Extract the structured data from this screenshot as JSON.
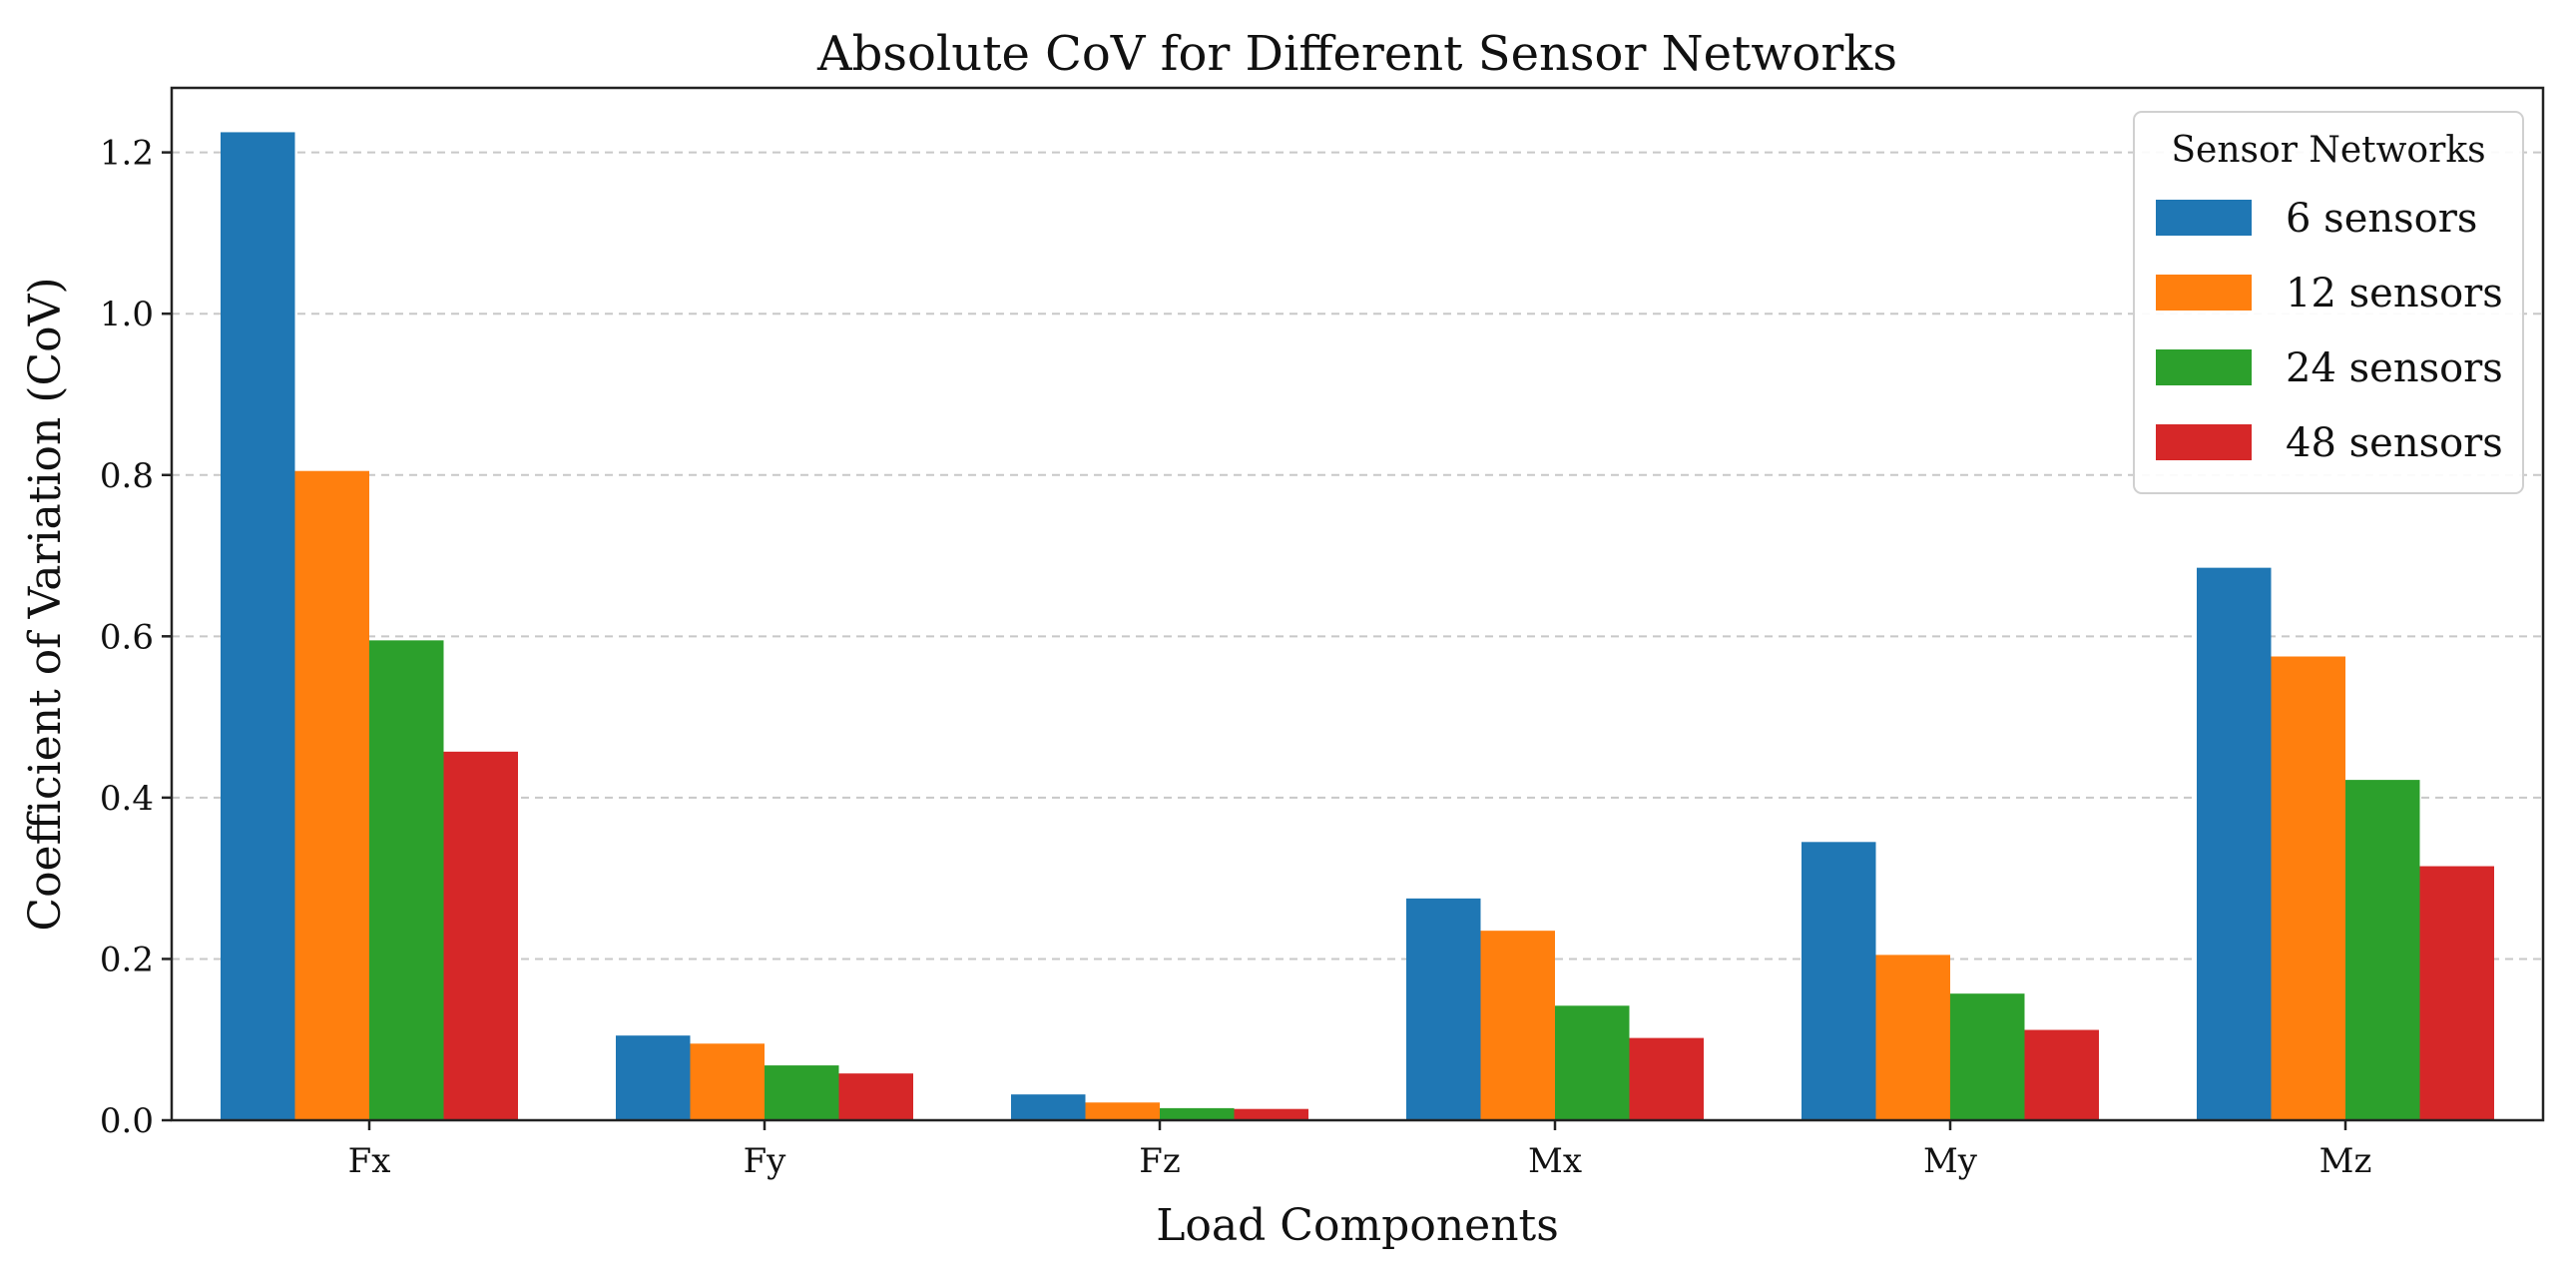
{
  "chart_data": {
    "type": "bar",
    "title": "Absolute CoV for Different Sensor Networks",
    "xlabel": "Load Components",
    "ylabel": "Coefficient of Variation (CoV)",
    "ylim": [
      0,
      1.28
    ],
    "yticks": [
      0.0,
      0.2,
      0.4,
      0.6,
      0.8,
      1.0,
      1.2
    ],
    "ytick_labels": [
      "0.0",
      "0.2",
      "0.4",
      "0.6",
      "0.8",
      "1.0",
      "1.2"
    ],
    "grid": true,
    "categories": [
      "Fx",
      "Fy",
      "Fz",
      "Mx",
      "My",
      "Mz"
    ],
    "legend": {
      "title": "Sensor Networks",
      "position": "top-right"
    },
    "series": [
      {
        "name": "6 sensors",
        "color": "#1f77b4",
        "values": [
          1.225,
          0.105,
          0.032,
          0.275,
          0.345,
          0.685
        ]
      },
      {
        "name": "12 sensors",
        "color": "#ff7f0e",
        "values": [
          0.805,
          0.095,
          0.022,
          0.235,
          0.205,
          0.575
        ]
      },
      {
        "name": "24 sensors",
        "color": "#2ca02c",
        "values": [
          0.595,
          0.068,
          0.015,
          0.142,
          0.157,
          0.422
        ]
      },
      {
        "name": "48 sensors",
        "color": "#d62728",
        "values": [
          0.457,
          0.058,
          0.014,
          0.102,
          0.112,
          0.315
        ]
      }
    ]
  }
}
